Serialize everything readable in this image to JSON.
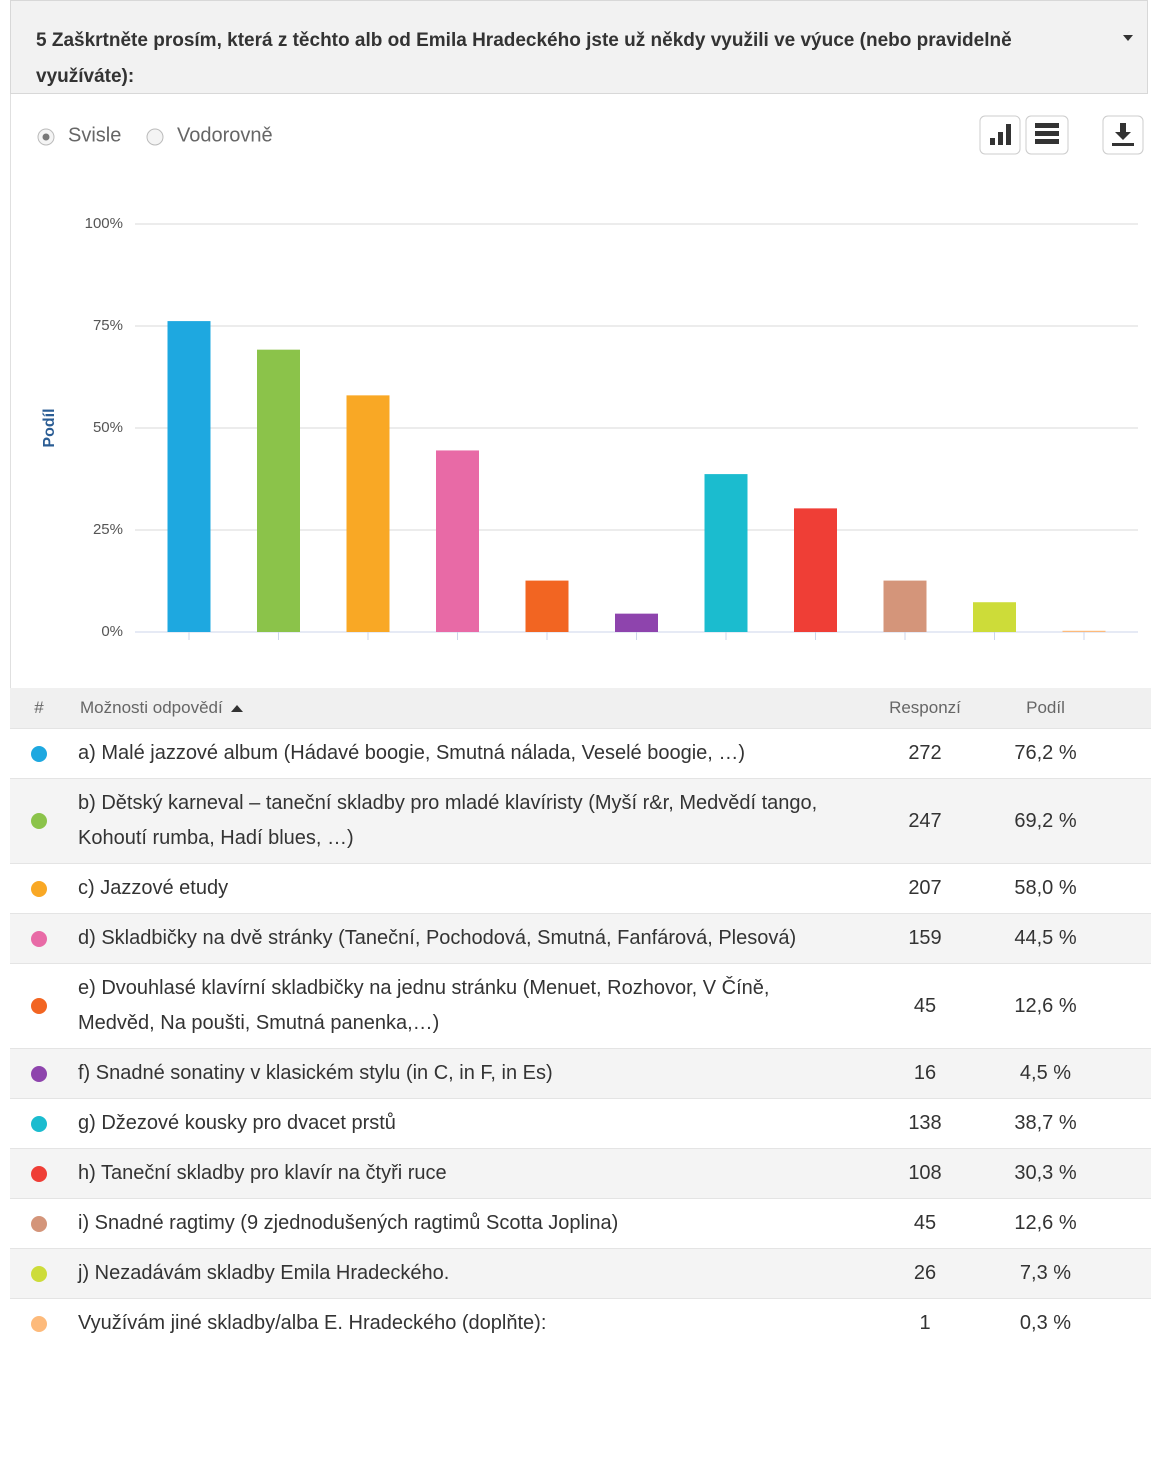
{
  "header": {
    "title": "5 Zaškrtněte prosím, která z těchto alb od Emila Hradeckého jste už někdy využili ve výuce (nebo pravidelně využíváte):"
  },
  "view_options": [
    "Svisle",
    "Vodorovně"
  ],
  "chart_data": {
    "type": "bar",
    "y_label": "Podíl",
    "categories": [
      null,
      null,
      null,
      null,
      null,
      null,
      null,
      null,
      null,
      null,
      null
    ],
    "values": [
      76.2,
      69.2,
      58.0,
      44.5,
      12.6,
      4.5,
      38.7,
      30.3,
      12.6,
      7.3,
      0.3
    ],
    "colors": [
      "#1ea8e0",
      "#8bc34a",
      "#f9a825",
      "#e86aa6",
      "#f26522",
      "#8e44ad",
      "#1bbccf",
      "#ef3e36",
      "#d4957a",
      "#cddc39",
      "#fdba7b"
    ],
    "ylim": [
      0,
      100
    ],
    "yticks": [
      {
        "value": 0,
        "label": "0%"
      },
      {
        "value": 25,
        "label": "25%"
      },
      {
        "value": 50,
        "label": "50%"
      },
      {
        "value": 75,
        "label": "75%"
      },
      {
        "value": 100,
        "label": "100%"
      }
    ],
    "grid": true
  },
  "table": {
    "columns": [
      "#",
      "Možnosti odpovědí",
      "Responzí",
      "Podíl"
    ],
    "rows": [
      [
        "a) Malé jazzové album (Hádavé boogie, Smutná nálada, Veselé boogie, …)",
        272,
        "76,2 %"
      ],
      [
        "b) Dětský karneval – taneční skladby pro mladé klavíristy (Myší r&r, Medvědí tango, Kohoutí rumba, Hadí blues, …)",
        247,
        "69,2 %"
      ],
      [
        "c) Jazzové etudy",
        207,
        "58,0 %"
      ],
      [
        "d) Skladbičky na dvě stránky (Taneční, Pochodová, Smutná, Fanfárová, Plesová)",
        159,
        "44,5 %"
      ],
      [
        "e) Dvouhlasé klavírní skladbičky na jednu stránku (Menuet, Rozhovor, V Číně, Medvěd, Na poušti, Smutná panenka,…)",
        45,
        "12,6 %"
      ],
      [
        "f) Snadné sonatiny v klasickém stylu (in C, in F, in Es)",
        16,
        "4,5 %"
      ],
      [
        "g) Džezové kousky pro dvacet prstů",
        138,
        "38,7 %"
      ],
      [
        "h) Taneční skladby pro klavír na čtyři ruce",
        108,
        "30,3 %"
      ],
      [
        "i) Snadné ragtimy (9 zjednodušených ragtimů Scotta Joplina)",
        45,
        "12,6 %"
      ],
      [
        "j) Nezadávám skladby Emila Hradeckého.",
        26,
        "7,3 %"
      ],
      [
        "Využívám jiné skladby/alba E. Hradeckého (doplňte):",
        1,
        "0,3 %"
      ]
    ]
  }
}
